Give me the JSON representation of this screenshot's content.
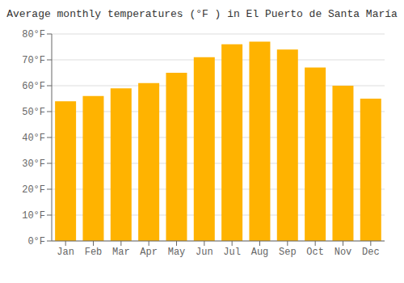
{
  "chart_data": {
    "type": "bar",
    "title": "Average monthly temperatures (°F ) in El Puerto de Santa María",
    "categories": [
      "Jan",
      "Feb",
      "Mar",
      "Apr",
      "May",
      "Jun",
      "Jul",
      "Aug",
      "Sep",
      "Oct",
      "Nov",
      "Dec"
    ],
    "values": [
      54,
      56,
      59,
      61,
      65,
      71,
      76,
      77,
      74,
      67,
      60,
      55
    ],
    "color": "#FFB300",
    "ylim": [
      0,
      80
    ],
    "yticks": [
      {
        "value": 0,
        "label": "0°F"
      },
      {
        "value": 10,
        "label": "10°F"
      },
      {
        "value": 20,
        "label": "20°F"
      },
      {
        "value": 30,
        "label": "30°F"
      },
      {
        "value": 40,
        "label": "40°F"
      },
      {
        "value": 50,
        "label": "50°F"
      },
      {
        "value": 60,
        "label": "60°F"
      },
      {
        "value": 70,
        "label": "70°F"
      },
      {
        "value": 80,
        "label": "80°F"
      }
    ],
    "grid": true
  }
}
